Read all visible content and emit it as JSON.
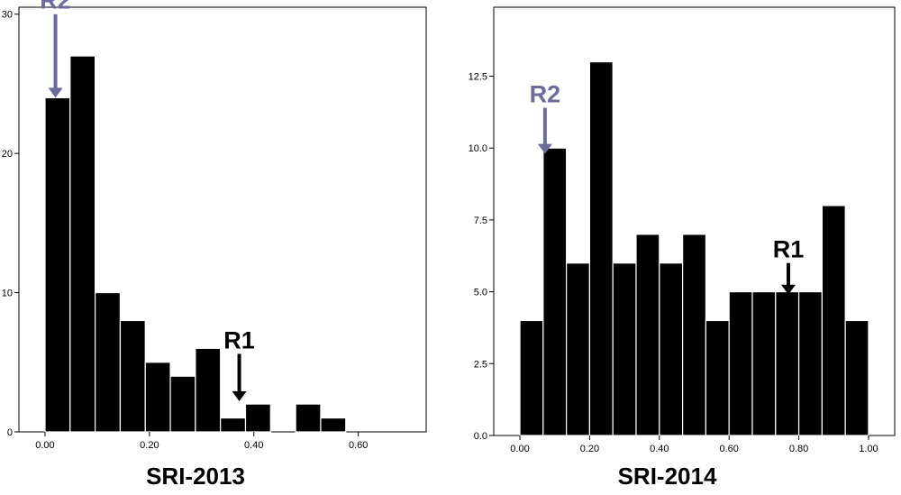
{
  "chart_data": [
    {
      "type": "bar",
      "title": "",
      "xlabel": "SRI-2013",
      "ylabel": "",
      "xlim": [
        -0.05,
        0.73
      ],
      "ylim": [
        0,
        30.5
      ],
      "bin_width": 0.048,
      "x_ticks": [
        0.0,
        0.2,
        0.4,
        0.6
      ],
      "x_tick_labels": [
        "0.00",
        "0.20",
        "0.40",
        "0.60"
      ],
      "y_ticks": [
        0,
        10,
        20,
        30
      ],
      "y_tick_labels": [
        "0",
        "10",
        "20",
        "30"
      ],
      "bins": [
        {
          "x": 0.0,
          "count": 24
        },
        {
          "x": 0.048,
          "count": 27
        },
        {
          "x": 0.096,
          "count": 10
        },
        {
          "x": 0.144,
          "count": 8
        },
        {
          "x": 0.192,
          "count": 5
        },
        {
          "x": 0.24,
          "count": 4
        },
        {
          "x": 0.288,
          "count": 6
        },
        {
          "x": 0.336,
          "count": 1
        },
        {
          "x": 0.384,
          "count": 2
        },
        {
          "x": 0.48,
          "count": 2
        },
        {
          "x": 0.528,
          "count": 1
        }
      ],
      "annotations": [
        {
          "label": "R2",
          "x": 0.02,
          "y_from": 30.0,
          "y_to": 24.0,
          "color": "#6c6c9c"
        },
        {
          "label": "R1",
          "x": 0.372,
          "y_from": 5.6,
          "y_to": 2.2,
          "color": "#000000"
        }
      ],
      "grid": false,
      "legend": "none"
    },
    {
      "type": "bar",
      "title": "",
      "xlabel": "SRI-2014",
      "ylabel": "",
      "xlim": [
        -0.075,
        1.075
      ],
      "ylim": [
        0,
        14.9
      ],
      "bin_width": 0.0667,
      "x_ticks": [
        0.0,
        0.2,
        0.4,
        0.6,
        0.8,
        1.0
      ],
      "x_tick_labels": [
        "0.00",
        "0.20",
        "0.40",
        "0.60",
        "0.80",
        "1.00"
      ],
      "y_ticks": [
        0,
        2.5,
        5.0,
        7.5,
        10.0,
        12.5
      ],
      "y_tick_labels": [
        "0.0",
        "2.5",
        "5.0",
        "7.5",
        "10.0",
        "12.5"
      ],
      "bins": [
        {
          "x": 0.0,
          "count": 4
        },
        {
          "x": 0.0667,
          "count": 10
        },
        {
          "x": 0.1333,
          "count": 6
        },
        {
          "x": 0.2,
          "count": 13
        },
        {
          "x": 0.2667,
          "count": 6
        },
        {
          "x": 0.3333,
          "count": 7
        },
        {
          "x": 0.4,
          "count": 6
        },
        {
          "x": 0.4667,
          "count": 7
        },
        {
          "x": 0.5333,
          "count": 4
        },
        {
          "x": 0.6,
          "count": 5
        },
        {
          "x": 0.6667,
          "count": 5
        },
        {
          "x": 0.7333,
          "count": 5
        },
        {
          "x": 0.8,
          "count": 5
        },
        {
          "x": 0.8667,
          "count": 8
        },
        {
          "x": 0.9333,
          "count": 4
        }
      ],
      "annotations": [
        {
          "label": "R2",
          "x": 0.072,
          "y_from": 11.4,
          "y_to": 9.8,
          "color": "#6c6c9c"
        },
        {
          "label": "R1",
          "x": 0.77,
          "y_from": 6.0,
          "y_to": 4.9,
          "color": "#000000"
        }
      ],
      "grid": false,
      "legend": "none"
    }
  ]
}
